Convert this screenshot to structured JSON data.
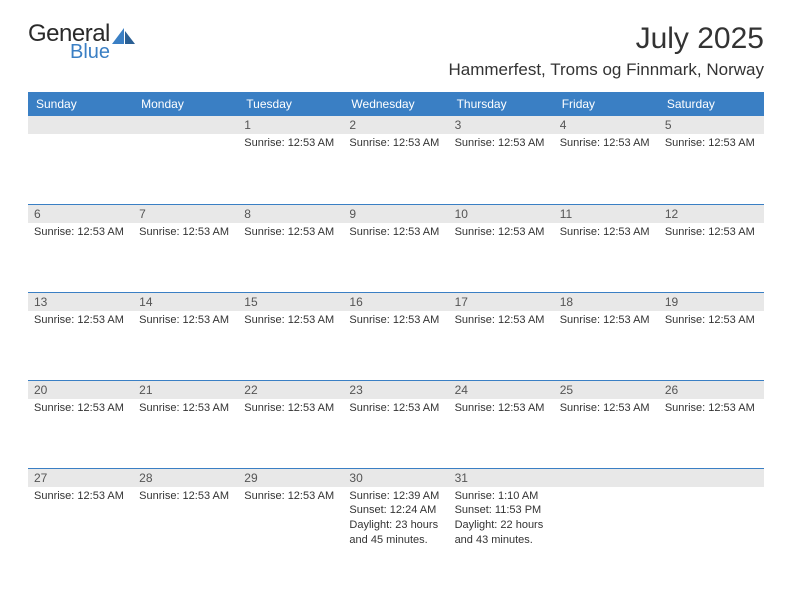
{
  "logo": {
    "word1": "General",
    "word2": "Blue"
  },
  "title": "July 2025",
  "location": "Hammerfest, Troms og Finnmark, Norway",
  "colors": {
    "accent": "#3a7fc4",
    "header_bg": "#3a7fc4",
    "header_text": "#ffffff",
    "daybar_bg": "#e8e8e8",
    "daybar_text": "#555555",
    "body_bg": "#ffffff",
    "text": "#333333"
  },
  "days_of_week": [
    "Sunday",
    "Monday",
    "Tuesday",
    "Wednesday",
    "Thursday",
    "Friday",
    "Saturday"
  ],
  "weeks": [
    [
      {
        "n": "",
        "lines": []
      },
      {
        "n": "",
        "lines": []
      },
      {
        "n": "1",
        "lines": [
          "Sunrise: 12:53 AM"
        ]
      },
      {
        "n": "2",
        "lines": [
          "Sunrise: 12:53 AM"
        ]
      },
      {
        "n": "3",
        "lines": [
          "Sunrise: 12:53 AM"
        ]
      },
      {
        "n": "4",
        "lines": [
          "Sunrise: 12:53 AM"
        ]
      },
      {
        "n": "5",
        "lines": [
          "Sunrise: 12:53 AM"
        ]
      }
    ],
    [
      {
        "n": "6",
        "lines": [
          "Sunrise: 12:53 AM"
        ]
      },
      {
        "n": "7",
        "lines": [
          "Sunrise: 12:53 AM"
        ]
      },
      {
        "n": "8",
        "lines": [
          "Sunrise: 12:53 AM"
        ]
      },
      {
        "n": "9",
        "lines": [
          "Sunrise: 12:53 AM"
        ]
      },
      {
        "n": "10",
        "lines": [
          "Sunrise: 12:53 AM"
        ]
      },
      {
        "n": "11",
        "lines": [
          "Sunrise: 12:53 AM"
        ]
      },
      {
        "n": "12",
        "lines": [
          "Sunrise: 12:53 AM"
        ]
      }
    ],
    [
      {
        "n": "13",
        "lines": [
          "Sunrise: 12:53 AM"
        ]
      },
      {
        "n": "14",
        "lines": [
          "Sunrise: 12:53 AM"
        ]
      },
      {
        "n": "15",
        "lines": [
          "Sunrise: 12:53 AM"
        ]
      },
      {
        "n": "16",
        "lines": [
          "Sunrise: 12:53 AM"
        ]
      },
      {
        "n": "17",
        "lines": [
          "Sunrise: 12:53 AM"
        ]
      },
      {
        "n": "18",
        "lines": [
          "Sunrise: 12:53 AM"
        ]
      },
      {
        "n": "19",
        "lines": [
          "Sunrise: 12:53 AM"
        ]
      }
    ],
    [
      {
        "n": "20",
        "lines": [
          "Sunrise: 12:53 AM"
        ]
      },
      {
        "n": "21",
        "lines": [
          "Sunrise: 12:53 AM"
        ]
      },
      {
        "n": "22",
        "lines": [
          "Sunrise: 12:53 AM"
        ]
      },
      {
        "n": "23",
        "lines": [
          "Sunrise: 12:53 AM"
        ]
      },
      {
        "n": "24",
        "lines": [
          "Sunrise: 12:53 AM"
        ]
      },
      {
        "n": "25",
        "lines": [
          "Sunrise: 12:53 AM"
        ]
      },
      {
        "n": "26",
        "lines": [
          "Sunrise: 12:53 AM"
        ]
      }
    ],
    [
      {
        "n": "27",
        "lines": [
          "Sunrise: 12:53 AM"
        ]
      },
      {
        "n": "28",
        "lines": [
          "Sunrise: 12:53 AM"
        ]
      },
      {
        "n": "29",
        "lines": [
          "Sunrise: 12:53 AM"
        ]
      },
      {
        "n": "30",
        "lines": [
          "Sunrise: 12:39 AM",
          "Sunset: 12:24 AM",
          "Daylight: 23 hours and 45 minutes."
        ]
      },
      {
        "n": "31",
        "lines": [
          "Sunrise: 1:10 AM",
          "Sunset: 11:53 PM",
          "Daylight: 22 hours and 43 minutes."
        ]
      },
      {
        "n": "",
        "lines": []
      },
      {
        "n": "",
        "lines": []
      }
    ]
  ]
}
